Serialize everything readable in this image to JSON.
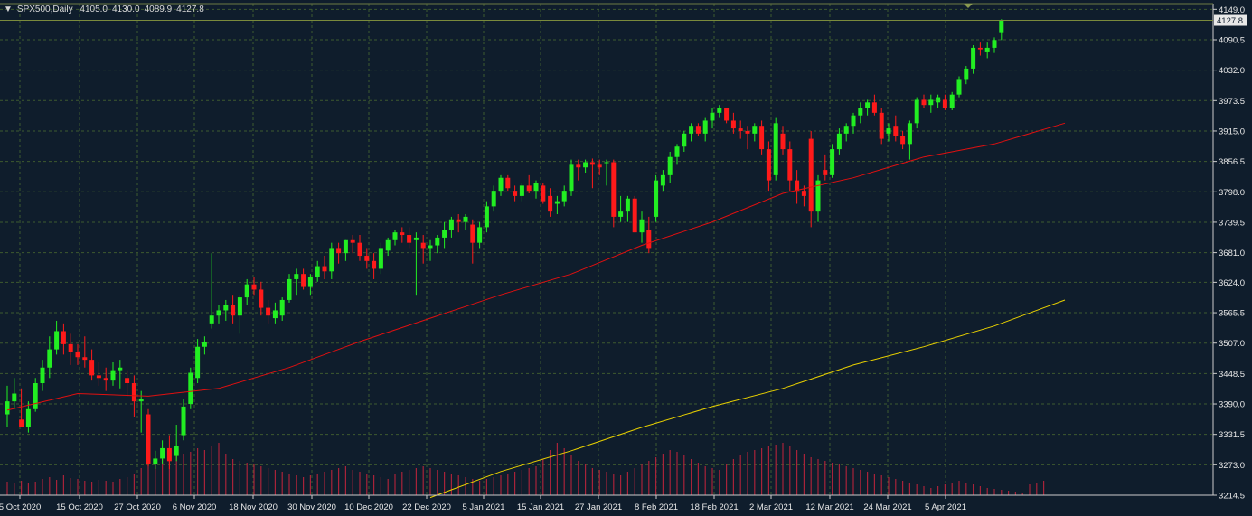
{
  "header": {
    "symbol": "SPX500,Daily",
    "open": "4105.0",
    "high": "4130.0",
    "low": "4089.9",
    "close": "4127.8"
  },
  "current_price_label": "4127.8",
  "colors": {
    "background": "#0f1d2c",
    "grid": "#3e5a2f",
    "bull": "#22ee22",
    "bear": "#ff1a1a",
    "ma_fast": "#e01010",
    "ma_slow": "#e8d000",
    "volume": "#a8233a",
    "axis_text": "#e8e8e8"
  },
  "chart_data": {
    "type": "candlestick",
    "y_range": [
      3214.5,
      4160
    ],
    "y_ticks": [
      "4149.0",
      "4090.5",
      "4032.0",
      "3973.5",
      "3915.0",
      "3856.5",
      "3798.0",
      "3739.5",
      "3681.0",
      "3624.0",
      "3565.5",
      "3507.0",
      "3448.5",
      "3390.0",
      "3331.5",
      "3273.0",
      "3214.5"
    ],
    "x_labels": [
      "5 Oct 2020",
      "15 Oct 2020",
      "27 Oct 2020",
      "6 Nov 2020",
      "18 Nov 2020",
      "30 Nov 2020",
      "10 Dec 2020",
      "22 Dec 2020",
      "5 Jan 2021",
      "15 Jan 2021",
      "27 Jan 2021",
      "8 Feb 2021",
      "18 Feb 2021",
      "2 Mar 2021",
      "12 Mar 2021",
      "24 Mar 2021",
      "5 Apr 2021"
    ],
    "candles": [
      [
        3370,
        3425,
        3345,
        3395
      ],
      [
        3395,
        3440,
        3380,
        3410
      ],
      [
        3360,
        3420,
        3350,
        3345
      ],
      [
        3345,
        3395,
        3335,
        3380
      ],
      [
        3380,
        3440,
        3375,
        3430
      ],
      [
        3430,
        3475,
        3415,
        3460
      ],
      [
        3460,
        3520,
        3440,
        3495
      ],
      [
        3495,
        3550,
        3485,
        3530
      ],
      [
        3530,
        3545,
        3485,
        3505
      ],
      [
        3505,
        3525,
        3465,
        3490
      ],
      [
        3490,
        3505,
        3465,
        3480
      ],
      [
        3480,
        3520,
        3460,
        3475
      ],
      [
        3475,
        3495,
        3435,
        3445
      ],
      [
        3445,
        3470,
        3425,
        3440
      ],
      [
        3440,
        3460,
        3415,
        3435
      ],
      [
        3435,
        3470,
        3425,
        3455
      ],
      [
        3455,
        3475,
        3420,
        3460
      ],
      [
        3440,
        3455,
        3405,
        3430
      ],
      [
        3430,
        3445,
        3365,
        3395
      ],
      [
        3395,
        3415,
        3335,
        3400
      ],
      [
        3370,
        3380,
        3270,
        3275
      ],
      [
        3275,
        3300,
        3265,
        3285
      ],
      [
        3285,
        3320,
        3275,
        3305
      ],
      [
        3305,
        3330,
        3265,
        3280
      ],
      [
        3290,
        3350,
        3280,
        3310
      ],
      [
        3330,
        3400,
        3320,
        3385
      ],
      [
        3390,
        3460,
        3380,
        3450
      ],
      [
        3440,
        3515,
        3430,
        3500
      ],
      [
        3500,
        3520,
        3485,
        3510
      ],
      [
        3545,
        3680,
        3535,
        3560
      ],
      [
        3560,
        3580,
        3545,
        3570
      ],
      [
        3570,
        3590,
        3550,
        3580
      ],
      [
        3580,
        3600,
        3545,
        3560
      ],
      [
        3560,
        3600,
        3525,
        3595
      ],
      [
        3595,
        3630,
        3580,
        3620
      ],
      [
        3620,
        3635,
        3600,
        3610
      ],
      [
        3610,
        3625,
        3560,
        3575
      ],
      [
        3575,
        3590,
        3545,
        3560
      ],
      [
        3555,
        3585,
        3545,
        3570
      ],
      [
        3560,
        3595,
        3550,
        3590
      ],
      [
        3590,
        3640,
        3585,
        3630
      ],
      [
        3630,
        3650,
        3600,
        3640
      ],
      [
        3640,
        3650,
        3610,
        3615
      ],
      [
        3615,
        3640,
        3600,
        3635
      ],
      [
        3635,
        3665,
        3625,
        3655
      ],
      [
        3655,
        3675,
        3630,
        3645
      ],
      [
        3645,
        3700,
        3630,
        3690
      ],
      [
        3690,
        3700,
        3660,
        3680
      ],
      [
        3680,
        3705,
        3665,
        3705
      ],
      [
        3705,
        3715,
        3680,
        3700
      ],
      [
        3700,
        3715,
        3665,
        3675
      ],
      [
        3675,
        3690,
        3650,
        3665
      ],
      [
        3665,
        3680,
        3630,
        3650
      ],
      [
        3650,
        3700,
        3640,
        3690
      ],
      [
        3685,
        3710,
        3675,
        3705
      ],
      [
        3705,
        3725,
        3695,
        3720
      ],
      [
        3720,
        3730,
        3700,
        3715
      ],
      [
        3715,
        3730,
        3690,
        3700
      ],
      [
        3705,
        3720,
        3600,
        3710
      ],
      [
        3700,
        3715,
        3660,
        3690
      ],
      [
        3690,
        3705,
        3665,
        3695
      ],
      [
        3695,
        3715,
        3680,
        3710
      ],
      [
        3710,
        3740,
        3690,
        3725
      ],
      [
        3725,
        3750,
        3710,
        3745
      ],
      [
        3745,
        3755,
        3720,
        3740
      ],
      [
        3740,
        3755,
        3725,
        3750
      ],
      [
        3735,
        3745,
        3660,
        3700
      ],
      [
        3700,
        3740,
        3690,
        3730
      ],
      [
        3730,
        3780,
        3720,
        3770
      ],
      [
        3770,
        3810,
        3760,
        3800
      ],
      [
        3800,
        3830,
        3790,
        3825
      ],
      [
        3825,
        3830,
        3800,
        3805
      ],
      [
        3800,
        3810,
        3780,
        3790
      ],
      [
        3790,
        3815,
        3780,
        3810
      ],
      [
        3810,
        3830,
        3795,
        3800
      ],
      [
        3800,
        3820,
        3785,
        3815
      ],
      [
        3810,
        3815,
        3775,
        3780
      ],
      [
        3790,
        3805,
        3750,
        3760
      ],
      [
        3775,
        3790,
        3755,
        3780
      ],
      [
        3780,
        3810,
        3770,
        3800
      ],
      [
        3800,
        3860,
        3790,
        3850
      ],
      [
        3850,
        3860,
        3820,
        3845
      ],
      [
        3845,
        3860,
        3835,
        3855
      ],
      [
        3855,
        3862,
        3805,
        3850
      ],
      [
        3850,
        3860,
        3830,
        3845
      ],
      [
        3855,
        3860,
        3810,
        3855
      ],
      [
        3855,
        3860,
        3730,
        3750
      ],
      [
        3750,
        3790,
        3740,
        3760
      ],
      [
        3760,
        3790,
        3740,
        3785
      ],
      [
        3785,
        3790,
        3720,
        3720
      ],
      [
        3720,
        3760,
        3700,
        3745
      ],
      [
        3725,
        3750,
        3680,
        3690
      ],
      [
        3750,
        3830,
        3740,
        3820
      ],
      [
        3810,
        3840,
        3800,
        3830
      ],
      [
        3830,
        3875,
        3815,
        3865
      ],
      [
        3865,
        3890,
        3850,
        3885
      ],
      [
        3885,
        3915,
        3875,
        3910
      ],
      [
        3910,
        3930,
        3895,
        3925
      ],
      [
        3925,
        3930,
        3905,
        3910
      ],
      [
        3910,
        3940,
        3895,
        3935
      ],
      [
        3935,
        3960,
        3920,
        3950
      ],
      [
        3950,
        3965,
        3940,
        3960
      ],
      [
        3960,
        3960,
        3930,
        3935
      ],
      [
        3935,
        3950,
        3910,
        3920
      ],
      [
        3920,
        3935,
        3900,
        3915
      ],
      [
        3915,
        3925,
        3880,
        3910
      ],
      [
        3910,
        3930,
        3895,
        3925
      ],
      [
        3925,
        3935,
        3870,
        3880
      ],
      [
        3880,
        3895,
        3800,
        3820
      ],
      [
        3830,
        3940,
        3820,
        3930
      ],
      [
        3910,
        3925,
        3870,
        3880
      ],
      [
        3880,
        3895,
        3800,
        3820
      ],
      [
        3820,
        3840,
        3775,
        3800
      ],
      [
        3800,
        3810,
        3770,
        3790
      ],
      [
        3900,
        3915,
        3730,
        3760
      ],
      [
        3760,
        3830,
        3740,
        3820
      ],
      [
        3840,
        3870,
        3820,
        3830
      ],
      [
        3830,
        3890,
        3825,
        3880
      ],
      [
        3880,
        3920,
        3870,
        3910
      ],
      [
        3910,
        3930,
        3895,
        3925
      ],
      [
        3925,
        3950,
        3910,
        3945
      ],
      [
        3945,
        3970,
        3930,
        3960
      ],
      [
        3960,
        3975,
        3945,
        3970
      ],
      [
        3970,
        3985,
        3945,
        3950
      ],
      [
        3950,
        3960,
        3890,
        3900
      ],
      [
        3910,
        3930,
        3895,
        3920
      ],
      [
        3925,
        3945,
        3895,
        3905
      ],
      [
        3905,
        3915,
        3880,
        3890
      ],
      [
        3890,
        3935,
        3860,
        3930
      ],
      [
        3930,
        3980,
        3920,
        3975
      ],
      [
        3975,
        3985,
        3960,
        3965
      ],
      [
        3965,
        3985,
        3950,
        3975
      ],
      [
        3970,
        3985,
        3960,
        3980
      ],
      [
        3975,
        3985,
        3955,
        3960
      ],
      [
        3960,
        3990,
        3955,
        3985
      ],
      [
        3985,
        4020,
        3980,
        4015
      ],
      [
        4015,
        4040,
        4005,
        4035
      ],
      [
        4035,
        4080,
        4025,
        4075
      ],
      [
        4075,
        4085,
        4060,
        4072
      ],
      [
        4068,
        4085,
        4055,
        4075
      ],
      [
        4075,
        4095,
        4065,
        4090
      ],
      [
        4105,
        4130,
        4089.9,
        4127.8
      ]
    ],
    "ma_fast": [
      [
        0,
        3378
      ],
      [
        10,
        3410
      ],
      [
        20,
        3405
      ],
      [
        30,
        3420
      ],
      [
        40,
        3460
      ],
      [
        50,
        3510
      ],
      [
        60,
        3555
      ],
      [
        70,
        3600
      ],
      [
        80,
        3640
      ],
      [
        90,
        3695
      ],
      [
        100,
        3740
      ],
      [
        110,
        3795
      ],
      [
        120,
        3825
      ],
      [
        130,
        3865
      ],
      [
        140,
        3890
      ],
      [
        150,
        3930
      ]
    ],
    "ma_slow": [
      [
        60,
        3210
      ],
      [
        70,
        3260
      ],
      [
        80,
        3300
      ],
      [
        90,
        3345
      ],
      [
        100,
        3385
      ],
      [
        110,
        3420
      ],
      [
        120,
        3465
      ],
      [
        130,
        3500
      ],
      [
        140,
        3540
      ],
      [
        150,
        3590
      ]
    ],
    "volume": [
      15,
      13,
      16,
      14,
      15,
      18,
      20,
      17,
      22,
      19,
      18,
      16,
      15,
      17,
      16,
      15,
      18,
      20,
      24,
      30,
      33,
      38,
      40,
      42,
      44,
      46,
      48,
      52,
      50,
      55,
      58,
      46,
      40,
      38,
      36,
      34,
      32,
      30,
      28,
      26,
      24,
      22,
      20,
      22,
      24,
      26,
      28,
      30,
      32,
      28,
      26,
      24,
      22,
      20,
      18,
      24,
      26,
      28,
      30,
      32,
      30,
      28,
      26,
      24,
      22,
      20,
      18,
      16,
      18,
      20,
      22,
      24,
      26,
      28,
      30,
      32,
      40,
      50,
      58,
      52,
      44,
      38,
      34,
      30,
      28,
      26,
      24,
      22,
      26,
      30,
      34,
      38,
      42,
      46,
      50,
      48,
      44,
      40,
      36,
      32,
      30,
      28,
      34,
      40,
      44,
      48,
      50,
      52,
      54,
      56,
      58,
      54,
      50,
      46,
      42,
      40,
      38,
      36,
      34,
      32,
      30,
      28,
      26,
      24,
      22,
      20,
      18,
      16,
      14,
      12,
      10,
      8,
      10,
      12,
      14,
      16,
      14,
      12,
      10,
      8,
      7,
      6,
      5,
      4,
      3,
      12,
      14,
      16
    ]
  }
}
